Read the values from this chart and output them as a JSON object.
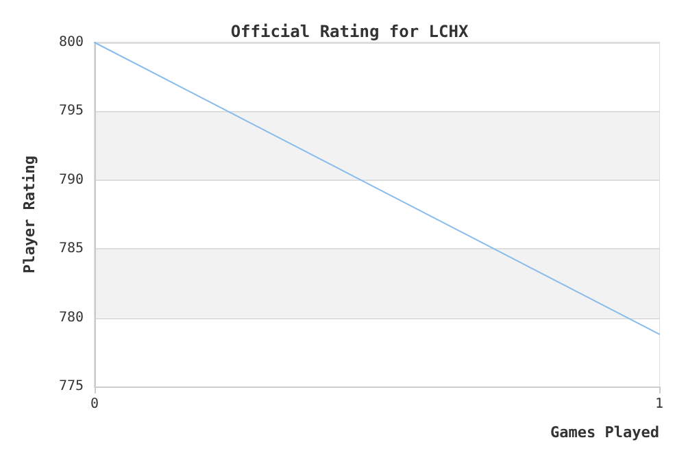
{
  "chart_data": {
    "type": "line",
    "title": "Official Rating for LCHX",
    "xlabel": "Games Played",
    "ylabel": "Player Rating",
    "x": [
      0,
      1
    ],
    "series": [
      {
        "color": "#88bbee",
        "values": [
          800,
          778.8
        ]
      }
    ],
    "xlim": [
      0,
      1
    ],
    "xticks": [
      0,
      1
    ],
    "ylim": [
      775,
      800
    ],
    "yticks": [
      775,
      780,
      785,
      790,
      795,
      800
    ],
    "grid": "y",
    "marker": "none",
    "line_style": "solid"
  }
}
